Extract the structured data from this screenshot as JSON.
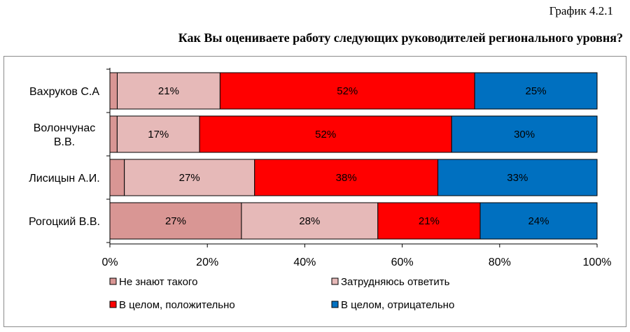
{
  "caption": "График 4.2.1",
  "heading": "Как Вы оцениваете работу следующих руководителей регионального уровня?",
  "chart_data": {
    "type": "bar",
    "orientation": "horizontal",
    "stacked": true,
    "percent": true,
    "categories": [
      [
        "Вахруков С.А"
      ],
      [
        "Волончунас",
        "В.В."
      ],
      [
        "Лисицын А.И."
      ],
      [
        "Рогоцкий В.В."
      ]
    ],
    "series": [
      {
        "name": "Не знают такого",
        "color": "#d99694",
        "values": [
          1.5,
          1.5,
          3,
          27
        ],
        "labels": [
          "",
          "",
          "",
          "27%"
        ]
      },
      {
        "name": "Затрудняюсь ответить",
        "color": "#e6b9b8",
        "values": [
          21,
          17,
          27,
          28
        ],
        "labels": [
          "21%",
          "17%",
          "27%",
          "28%"
        ]
      },
      {
        "name": "В целом, положительно",
        "color": "#ff0000",
        "values": [
          52,
          52,
          38,
          21
        ],
        "labels": [
          "52%",
          "52%",
          "38%",
          "21%"
        ]
      },
      {
        "name": "В целом, отрицательно",
        "color": "#0070c0",
        "values": [
          25,
          30,
          33,
          24
        ],
        "labels": [
          "25%",
          "30%",
          "33%",
          "24%"
        ]
      }
    ],
    "xlim": [
      0,
      100
    ],
    "xticks": [
      "0%",
      "20%",
      "40%",
      "60%",
      "80%",
      "100%"
    ],
    "legend_position": "bottom",
    "grid": false
  }
}
